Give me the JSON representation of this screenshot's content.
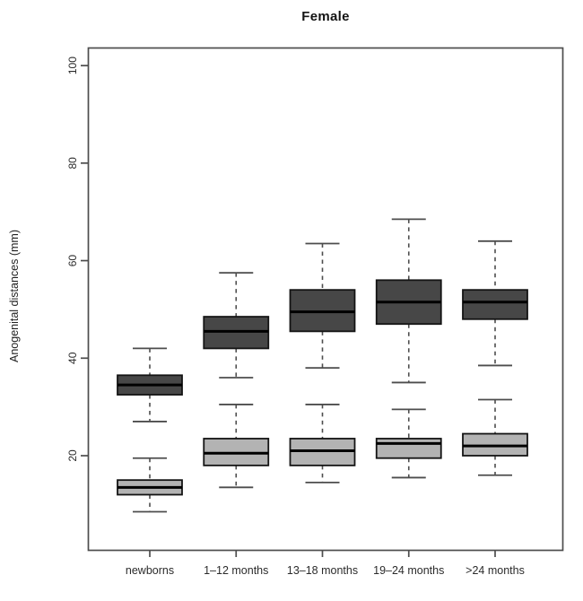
{
  "figure": {
    "title": "Female",
    "ylabel": "Anogenital distances (mm)"
  },
  "chart_data": {
    "type": "boxplot",
    "title": "Female",
    "xlabel": "",
    "ylabel": "Anogenital distances (mm)",
    "categories": [
      "newborns",
      "1–12 months",
      "13–18 months",
      "19–24 months",
      ">24 months"
    ],
    "yticks": [
      20,
      40,
      60,
      80,
      100
    ],
    "ylim": [
      0.5,
      103.7
    ],
    "grid": false,
    "legend_position": "none",
    "series": [
      {
        "name": "upper-dark",
        "fill": "#474747",
        "boxes": [
          {
            "category": "newborns",
            "whisker_low": 27,
            "q1": 32.5,
            "median": 34.5,
            "q3": 36.5,
            "whisker_high": 42
          },
          {
            "category": "1-12 months",
            "whisker_low": 36,
            "q1": 42,
            "median": 45.5,
            "q3": 48.5,
            "whisker_high": 57.5
          },
          {
            "category": "13-18 months",
            "whisker_low": 38,
            "q1": 45.5,
            "median": 49.5,
            "q3": 54,
            "whisker_high": 63.5
          },
          {
            "category": "19-24 months",
            "whisker_low": 35,
            "q1": 47,
            "median": 51.5,
            "q3": 56,
            "whisker_high": 68.5
          },
          {
            "category": ">24 months",
            "whisker_low": 38.5,
            "q1": 48,
            "median": 51.5,
            "q3": 54,
            "whisker_high": 64
          }
        ]
      },
      {
        "name": "lower-light",
        "fill": "#b3b3b3",
        "boxes": [
          {
            "category": "newborns",
            "whisker_low": 8.5,
            "q1": 12,
            "median": 13.5,
            "q3": 15,
            "whisker_high": 19.5
          },
          {
            "category": "1-12 months",
            "whisker_low": 13.5,
            "q1": 18,
            "median": 20.5,
            "q3": 23.5,
            "whisker_high": 30.5
          },
          {
            "category": "13-18 months",
            "whisker_low": 14.5,
            "q1": 18,
            "median": 21,
            "q3": 23.5,
            "whisker_high": 30.5
          },
          {
            "category": "19-24 months",
            "whisker_low": 15.5,
            "q1": 19.5,
            "median": 22.5,
            "q3": 23.5,
            "whisker_high": 29.5
          },
          {
            "category": ">24 months",
            "whisker_low": 16,
            "q1": 20,
            "median": 22,
            "q3": 24.5,
            "whisker_high": 31.5
          }
        ]
      }
    ],
    "colors": {
      "box_dark_fill": "#474747",
      "box_light_fill": "#b3b3b3",
      "box_border": "#141414",
      "median_line": "#000000",
      "whisker": "#4d4d4d",
      "axis_frame": "#4d4d4d",
      "tick_label": "#2b2b2b",
      "background": "#ffffff"
    }
  }
}
